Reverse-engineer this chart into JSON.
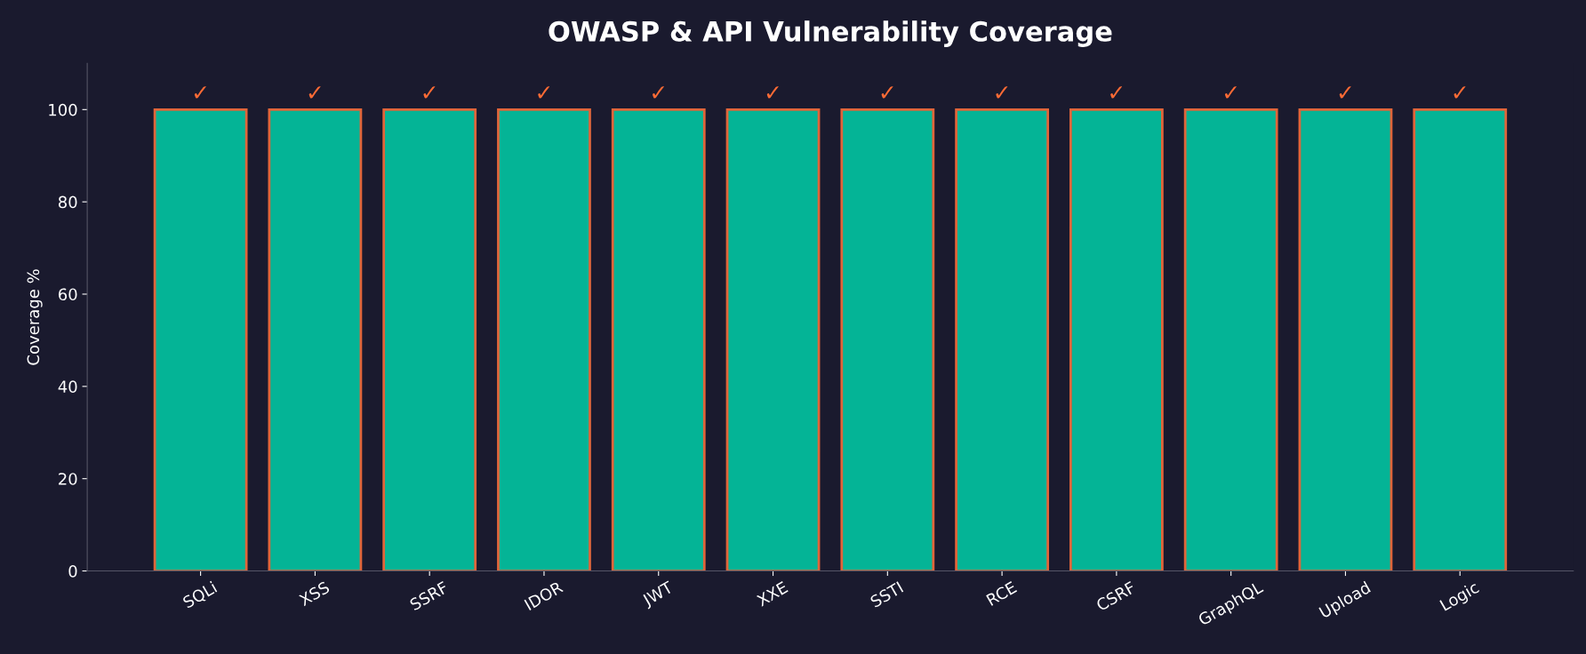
{
  "chart_data": {
    "type": "bar",
    "title": "OWASP & API Vulnerability Coverage",
    "ylabel": "Coverage %",
    "categories": [
      "SQLi",
      "XSS",
      "SSRF",
      "IDOR",
      "JWT",
      "XXE",
      "SSTI",
      "RCE",
      "CSRF",
      "GraphQL",
      "Upload",
      "Logic"
    ],
    "values": [
      100,
      100,
      100,
      100,
      100,
      100,
      100,
      100,
      100,
      100,
      100,
      100
    ],
    "value_labels": [
      "✓",
      "✓",
      "✓",
      "✓",
      "✓",
      "✓",
      "✓",
      "✓",
      "✓",
      "✓",
      "✓",
      "✓"
    ],
    "color": "#04b496",
    "ylim": [
      0,
      110
    ],
    "yticks": [
      0,
      20,
      40,
      60,
      80,
      100
    ],
    "grid": false
  }
}
